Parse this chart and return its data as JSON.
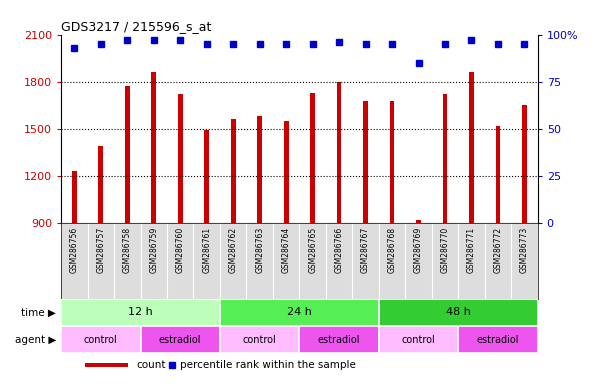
{
  "title": "GDS3217 / 215596_s_at",
  "samples": [
    "GSM286756",
    "GSM286757",
    "GSM286758",
    "GSM286759",
    "GSM286760",
    "GSM286761",
    "GSM286762",
    "GSM286763",
    "GSM286764",
    "GSM286765",
    "GSM286766",
    "GSM286767",
    "GSM286768",
    "GSM286769",
    "GSM286770",
    "GSM286771",
    "GSM286772",
    "GSM286773"
  ],
  "counts": [
    1230,
    1390,
    1770,
    1860,
    1720,
    1490,
    1560,
    1580,
    1550,
    1730,
    1800,
    1680,
    1680,
    920,
    1720,
    1860,
    1520,
    1650
  ],
  "percentile_ranks": [
    93,
    95,
    97,
    97,
    97,
    95,
    95,
    95,
    95,
    95,
    96,
    95,
    95,
    85,
    95,
    97,
    95,
    95
  ],
  "bar_color": "#cc0000",
  "dot_color": "#0000cc",
  "ylim_left": [
    900,
    2100
  ],
  "ylim_right": [
    0,
    100
  ],
  "yticks_left": [
    900,
    1200,
    1500,
    1800,
    2100
  ],
  "yticks_right": [
    0,
    25,
    50,
    75,
    100
  ],
  "ytick_labels_right": [
    "0",
    "25",
    "50",
    "75",
    "100%"
  ],
  "time_groups": [
    {
      "label": "12 h",
      "start": 0,
      "end": 6,
      "color": "#bbffbb"
    },
    {
      "label": "24 h",
      "start": 6,
      "end": 12,
      "color": "#55ee55"
    },
    {
      "label": "48 h",
      "start": 12,
      "end": 18,
      "color": "#33cc33"
    }
  ],
  "agent_groups": [
    {
      "label": "control",
      "start": 0,
      "end": 3,
      "color": "#ffbbff"
    },
    {
      "label": "estradiol",
      "start": 3,
      "end": 6,
      "color": "#ee55ee"
    },
    {
      "label": "control",
      "start": 6,
      "end": 9,
      "color": "#ffbbff"
    },
    {
      "label": "estradiol",
      "start": 9,
      "end": 12,
      "color": "#ee55ee"
    },
    {
      "label": "control",
      "start": 12,
      "end": 15,
      "color": "#ffbbff"
    },
    {
      "label": "estradiol",
      "start": 15,
      "end": 18,
      "color": "#ee55ee"
    }
  ],
  "legend_count_label": "count",
  "legend_percentile_label": "percentile rank within the sample",
  "background_color": "#ffffff",
  "xtick_bg_color": "#dddddd",
  "axis_label_color_left": "#cc0000",
  "axis_label_color_right": "#0000cc",
  "bar_width": 0.18,
  "dot_size": 5
}
